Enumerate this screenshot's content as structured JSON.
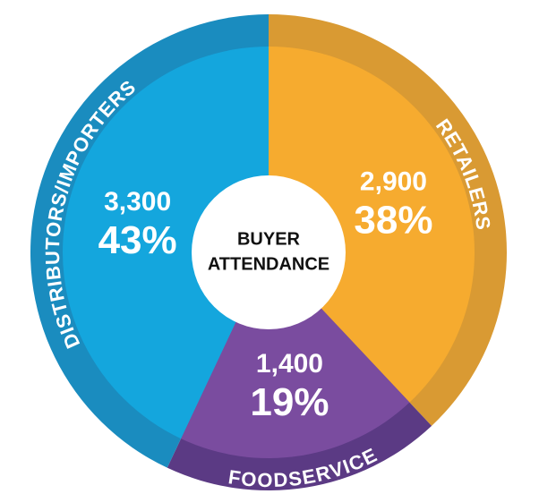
{
  "chart_data": {
    "type": "donut",
    "title_lines": [
      "BUYER",
      "ATTENDANCE"
    ],
    "categories": [
      "RETAILERS",
      "FOODSERVICE",
      "DISTRIBUTORS/IMPORTERS"
    ],
    "values": [
      2900,
      1400,
      3300
    ],
    "value_labels": [
      "2,900",
      "1,400",
      "3,300"
    ],
    "shares": [
      38,
      19,
      43
    ],
    "share_labels": [
      "38%",
      "19%",
      "43%"
    ],
    "colors": [
      "#f6ab2f",
      "#7a4c9f",
      "#14a6dd"
    ],
    "rim_colors": [
      "#d99a33",
      "#5b3a84",
      "#1a8cbf"
    ]
  }
}
